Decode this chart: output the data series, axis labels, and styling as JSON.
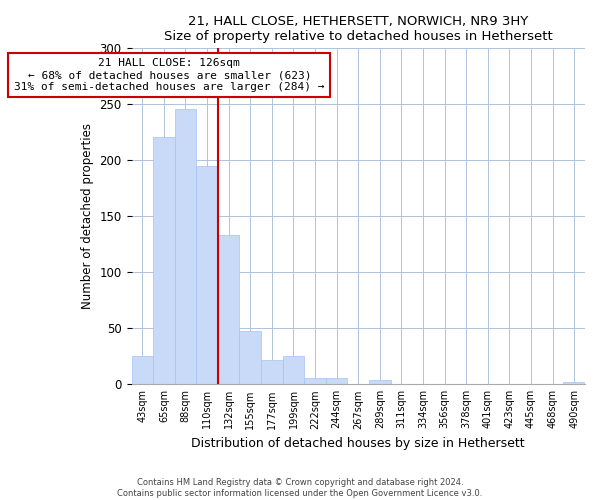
{
  "title1": "21, HALL CLOSE, HETHERSETT, NORWICH, NR9 3HY",
  "title2": "Size of property relative to detached houses in Hethersett",
  "xlabel": "Distribution of detached houses by size in Hethersett",
  "ylabel": "Number of detached properties",
  "bar_labels": [
    "43sqm",
    "65sqm",
    "88sqm",
    "110sqm",
    "132sqm",
    "155sqm",
    "177sqm",
    "199sqm",
    "222sqm",
    "244sqm",
    "267sqm",
    "289sqm",
    "311sqm",
    "334sqm",
    "356sqm",
    "378sqm",
    "401sqm",
    "423sqm",
    "445sqm",
    "468sqm",
    "490sqm"
  ],
  "bar_values": [
    25,
    221,
    246,
    195,
    133,
    48,
    22,
    25,
    6,
    6,
    0,
    4,
    0,
    0,
    0,
    0,
    0,
    0,
    0,
    0,
    2
  ],
  "bar_color": "#c9daf8",
  "bar_edge_color": "#a4c2f4",
  "ref_line_label": "21 HALL CLOSE: 126sqm",
  "annotation_line1": "← 68% of detached houses are smaller (623)",
  "annotation_line2": "31% of semi-detached houses are larger (284) →",
  "annotation_box_color": "#ffffff",
  "annotation_box_edge": "#cc0000",
  "ref_line_color": "#cc0000",
  "ylim": [
    0,
    300
  ],
  "yticks": [
    0,
    50,
    100,
    150,
    200,
    250,
    300
  ],
  "ref_bin_index": 3,
  "footer1": "Contains HM Land Registry data © Crown copyright and database right 2024.",
  "footer2": "Contains public sector information licensed under the Open Government Licence v3.0."
}
